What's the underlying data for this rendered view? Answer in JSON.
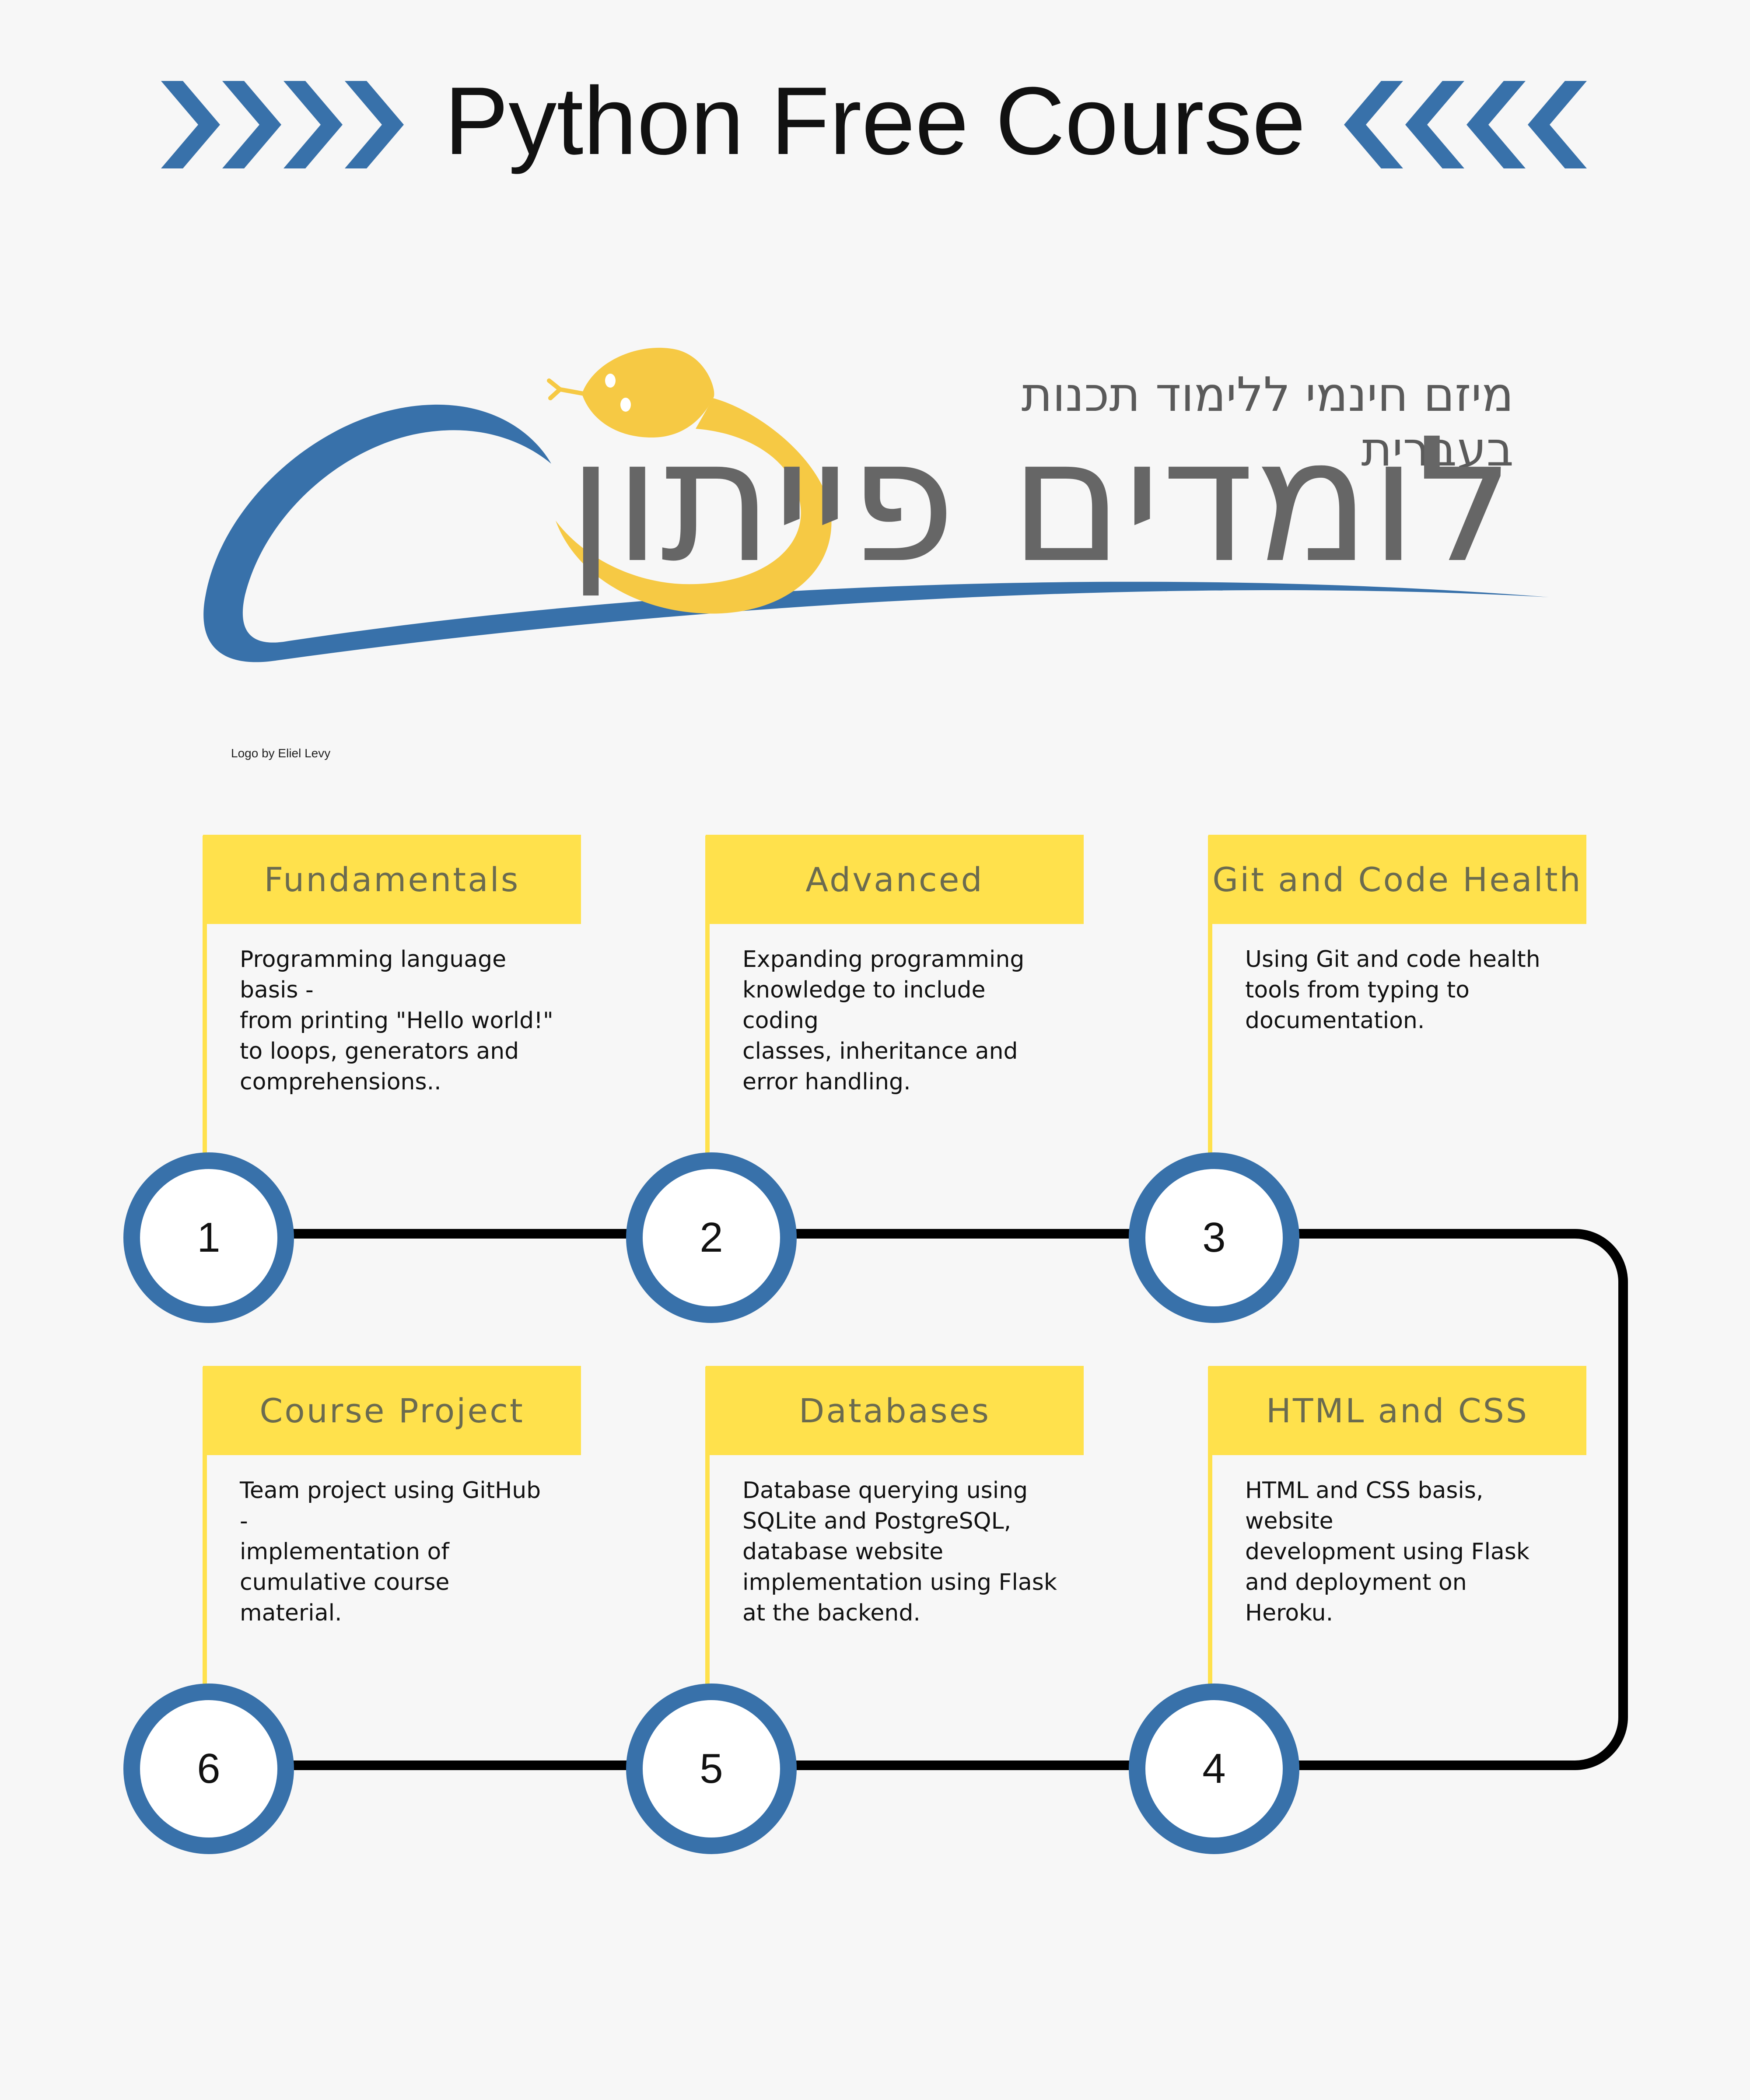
{
  "header": {
    "title": "Python Free Course"
  },
  "logo": {
    "subtitle_he": "מיזם חינמי ללימוד תכנות בעברית",
    "wordmark_he": "לומדים פייתון",
    "credit": "Logo by Eliel Levy"
  },
  "colors": {
    "background": "#f7f7f7",
    "accent_blue": "#3871aa",
    "accent_yellow": "#ffe14c",
    "track_black": "#000000"
  },
  "steps": [
    {
      "number": "1",
      "title": "Fundamentals",
      "description": "Programming language\nbasis -\nfrom printing \"Hello world!\"\nto loops, generators and\ncomprehensions.."
    },
    {
      "number": "2",
      "title": "Advanced",
      "description": "Expanding programming\nknowledge to include coding\nclasses, inheritance and\nerror handling."
    },
    {
      "number": "3",
      "title": "Git and Code Health",
      "description": "Using Git and code health\ntools from typing to\ndocumentation."
    },
    {
      "number": "4",
      "title": "HTML and CSS",
      "description": "HTML and CSS basis, website\ndevelopment using Flask\nand deployment on Heroku."
    },
    {
      "number": "5",
      "title": "Databases",
      "description": "Database querying using\nSQLite and PostgreSQL,\ndatabase website\nimplementation using Flask\nat the backend."
    },
    {
      "number": "6",
      "title": "Course Project",
      "description": "Team project using GitHub -\nimplementation of\ncumulative course material."
    }
  ]
}
